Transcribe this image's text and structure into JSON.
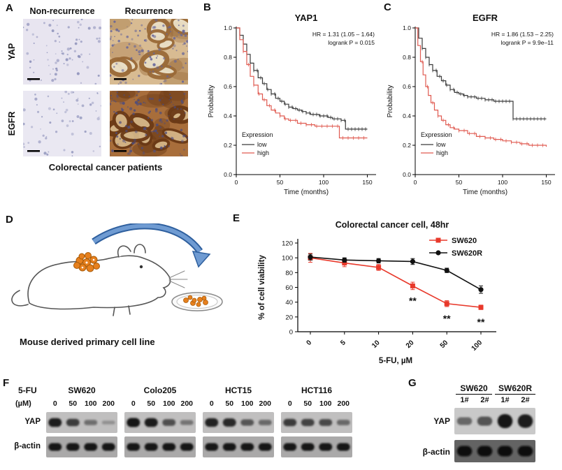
{
  "labels": {
    "A": "A",
    "B": "B",
    "C": "C",
    "D": "D",
    "E": "E",
    "F": "F",
    "G": "G"
  },
  "panelA": {
    "col_headers": [
      "Non-recurrence",
      "Recurrence"
    ],
    "row_labels": [
      "YAP",
      "EGFR"
    ],
    "caption": "Colorectal cancer patients",
    "ihc": [
      {
        "name": "yap-nonrecurrence",
        "bg": "#e8e5f0",
        "nucleus": "#8d91ba",
        "density": 75,
        "rings": 0,
        "blobs": 0
      },
      {
        "name": "yap-recurrence",
        "bg": "#d8bb92",
        "nucleus": "#63639a",
        "density": 110,
        "rings": 9,
        "blobs": 10,
        "stain": "#9a6a38",
        "lumen": "#eadfc6"
      },
      {
        "name": "egfr-nonrecurrence",
        "bg": "#eae8f2",
        "nucleus": "#9599bf",
        "density": 60,
        "rings": 0,
        "blobs": 0
      },
      {
        "name": "egfr-recurrence",
        "bg": "#a86e3b",
        "nucleus": "#4c4c7e",
        "density": 120,
        "rings": 10,
        "blobs": 14,
        "stain": "#6b3a16",
        "lumen": "#d4b587"
      }
    ]
  },
  "panelD": {
    "caption": "Mouse derived primary cell line"
  },
  "panelF": {
    "treatment_label": "5-FU",
    "unit_label": "(µM)",
    "concentrations": [
      "0",
      "50",
      "100",
      "200"
    ],
    "cell_lines": [
      "SW620",
      "Colo205",
      "HCT15",
      "HCT116"
    ],
    "row_labels": [
      "YAP",
      "β-actin"
    ],
    "yap_bands": [
      [
        0.95,
        0.7,
        0.3,
        0.03
      ],
      [
        1,
        0.95,
        0.55,
        0.25
      ],
      [
        0.9,
        0.85,
        0.5,
        0.35
      ],
      [
        0.7,
        0.65,
        0.6,
        0.35
      ]
    ],
    "actin_bands": [
      [
        1,
        1,
        1,
        1
      ],
      [
        1,
        1,
        1,
        1
      ],
      [
        1,
        1,
        1,
        1
      ],
      [
        1,
        1,
        1,
        1
      ]
    ]
  },
  "panelG": {
    "groups": [
      "SW620",
      "SW620R"
    ],
    "lanes": [
      "1#",
      "2#",
      "1#",
      "2#"
    ],
    "row_labels": [
      "YAP",
      "β-actin"
    ],
    "yap_bands": [
      0.35,
      0.5,
      1,
      0.95
    ],
    "actin_bands": [
      1,
      1,
      1,
      1
    ]
  },
  "chart_data": [
    {
      "id": "km_yap1",
      "type": "line",
      "kind": "km",
      "title": "YAP1",
      "xlabel": "Time (months)",
      "ylabel": "Probability",
      "xlim": [
        0,
        160
      ],
      "ylim": [
        0,
        1
      ],
      "xticks": [
        0,
        50,
        100,
        150
      ],
      "yticks": [
        0,
        0.2,
        0.4,
        0.6,
        0.8,
        1.0
      ],
      "annotation": [
        "HR = 1.31 (1.05 – 1.64)",
        "logrank P = 0.015"
      ],
      "legend_title": "Expression",
      "series": [
        {
          "name": "low",
          "color": "#3a3a3a",
          "points": [
            [
              0,
              1
            ],
            [
              4,
              0.95
            ],
            [
              8,
              0.89
            ],
            [
              12,
              0.82
            ],
            [
              16,
              0.76
            ],
            [
              20,
              0.71
            ],
            [
              25,
              0.66
            ],
            [
              30,
              0.62
            ],
            [
              35,
              0.58
            ],
            [
              40,
              0.55
            ],
            [
              45,
              0.52
            ],
            [
              50,
              0.5
            ],
            [
              55,
              0.48
            ],
            [
              60,
              0.46
            ],
            [
              65,
              0.45
            ],
            [
              70,
              0.44
            ],
            [
              75,
              0.43
            ],
            [
              80,
              0.42
            ],
            [
              85,
              0.41
            ],
            [
              95,
              0.4
            ],
            [
              105,
              0.39
            ],
            [
              110,
              0.38
            ],
            [
              120,
              0.37
            ],
            [
              125,
              0.31
            ],
            [
              150,
              0.31
            ]
          ]
        },
        {
          "name": "high",
          "color": "#e05a50",
          "points": [
            [
              0,
              1
            ],
            [
              4,
              0.92
            ],
            [
              8,
              0.84
            ],
            [
              12,
              0.75
            ],
            [
              16,
              0.67
            ],
            [
              20,
              0.61
            ],
            [
              25,
              0.55
            ],
            [
              30,
              0.51
            ],
            [
              35,
              0.47
            ],
            [
              40,
              0.44
            ],
            [
              45,
              0.42
            ],
            [
              50,
              0.4
            ],
            [
              55,
              0.38
            ],
            [
              60,
              0.37
            ],
            [
              70,
              0.35
            ],
            [
              80,
              0.34
            ],
            [
              90,
              0.33
            ],
            [
              110,
              0.33
            ],
            [
              118,
              0.25
            ],
            [
              150,
              0.25
            ]
          ]
        }
      ]
    },
    {
      "id": "km_egfr",
      "type": "line",
      "kind": "km",
      "title": "EGFR",
      "xlabel": "Time (months)",
      "ylabel": "Probability",
      "xlim": [
        0,
        160
      ],
      "ylim": [
        0,
        1
      ],
      "xticks": [
        0,
        50,
        100,
        150
      ],
      "yticks": [
        0,
        0.2,
        0.4,
        0.6,
        0.8,
        1.0
      ],
      "annotation": [
        "HR = 1.86 (1.53 – 2.25)",
        "logrank P = 9.9e–11"
      ],
      "legend_title": "Expression",
      "series": [
        {
          "name": "low",
          "color": "#3a3a3a",
          "points": [
            [
              0,
              1
            ],
            [
              4,
              0.93
            ],
            [
              8,
              0.86
            ],
            [
              12,
              0.8
            ],
            [
              16,
              0.75
            ],
            [
              20,
              0.71
            ],
            [
              25,
              0.67
            ],
            [
              30,
              0.64
            ],
            [
              35,
              0.61
            ],
            [
              40,
              0.58
            ],
            [
              45,
              0.56
            ],
            [
              50,
              0.55
            ],
            [
              55,
              0.54
            ],
            [
              60,
              0.53
            ],
            [
              70,
              0.52
            ],
            [
              80,
              0.51
            ],
            [
              90,
              0.5
            ],
            [
              108,
              0.5
            ],
            [
              112,
              0.38
            ],
            [
              150,
              0.38
            ]
          ]
        },
        {
          "name": "high",
          "color": "#e05a50",
          "points": [
            [
              0,
              1
            ],
            [
              3,
              0.88
            ],
            [
              6,
              0.77
            ],
            [
              9,
              0.68
            ],
            [
              12,
              0.6
            ],
            [
              15,
              0.54
            ],
            [
              18,
              0.49
            ],
            [
              22,
              0.44
            ],
            [
              26,
              0.4
            ],
            [
              30,
              0.37
            ],
            [
              35,
              0.34
            ],
            [
              40,
              0.32
            ],
            [
              45,
              0.31
            ],
            [
              50,
              0.3
            ],
            [
              60,
              0.28
            ],
            [
              70,
              0.26
            ],
            [
              80,
              0.25
            ],
            [
              90,
              0.24
            ],
            [
              100,
              0.23
            ],
            [
              110,
              0.22
            ],
            [
              120,
              0.21
            ],
            [
              130,
              0.2
            ],
            [
              150,
              0.19
            ]
          ]
        }
      ]
    },
    {
      "id": "viability",
      "type": "line",
      "kind": "dose_response",
      "title": "Colorectal cancer cell, 48hr",
      "xlabel": "5-FU, µM",
      "ylabel": "% of cell viability",
      "categories": [
        "0",
        "5",
        "10",
        "20",
        "50",
        "100"
      ],
      "yticks": [
        0,
        20,
        40,
        60,
        80,
        100,
        120
      ],
      "ylim": [
        0,
        120
      ],
      "series": [
        {
          "name": "SW620",
          "color": "#e8392b",
          "marker": "square",
          "values": [
            100,
            93,
            87,
            62,
            38,
            33
          ],
          "errors": [
            6,
            5,
            4,
            5,
            4,
            3
          ]
        },
        {
          "name": "SW620R",
          "color": "#111111",
          "marker": "circle",
          "values": [
            101,
            97,
            96,
            95,
            83,
            57
          ],
          "errors": [
            4,
            3,
            3,
            4,
            3,
            5
          ]
        }
      ],
      "significance": {
        "symbol": "**",
        "indices": [
          3,
          4,
          5
        ]
      }
    }
  ]
}
